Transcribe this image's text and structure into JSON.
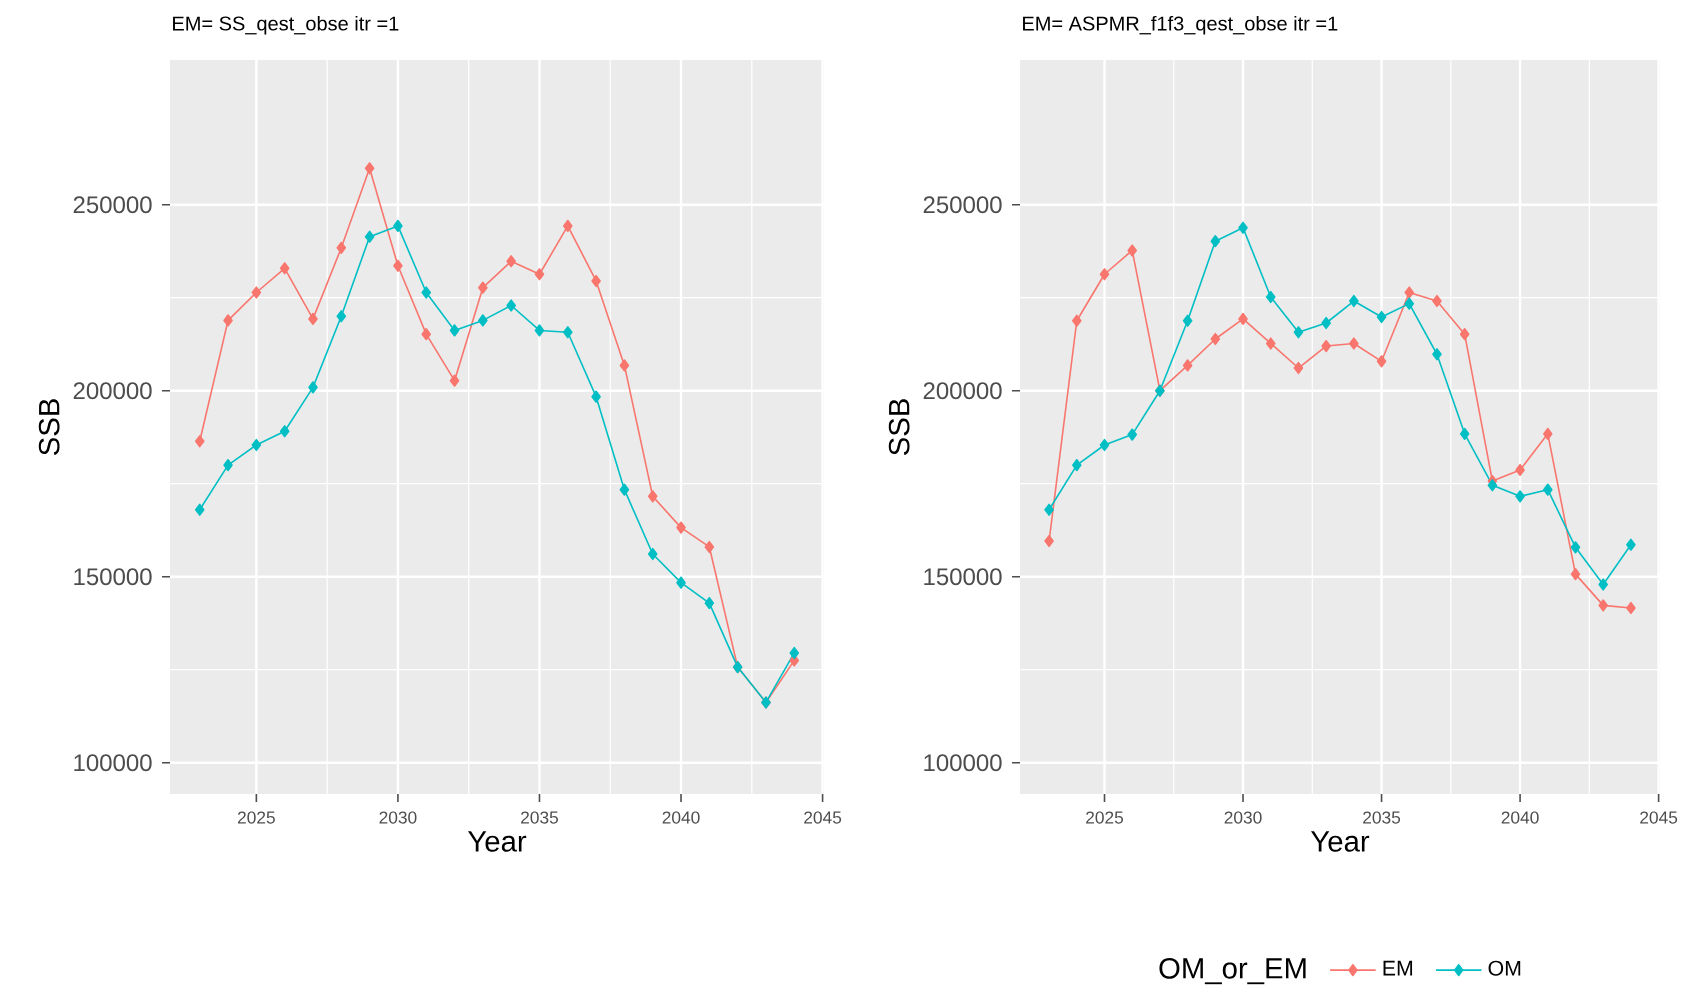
{
  "chart_data": [
    {
      "type": "line",
      "title": "EM= SS_qest_obse itr =1",
      "xlabel": "Year",
      "ylabel": "SSB",
      "x": [
        2023,
        2024,
        2025,
        2026,
        2027,
        2028,
        2029,
        2030,
        2031,
        2032,
        2033,
        2034,
        2035,
        2036,
        2037,
        2038,
        2039,
        2040,
        2041,
        2042,
        2043,
        2044
      ],
      "series": [
        {
          "color": "#f8766d",
          "values": [
            186400,
            218900,
            226400,
            232900,
            219300,
            238400,
            259800,
            233600,
            215200,
            202700,
            227700,
            234800,
            231300,
            244300,
            229500,
            206800,
            171600,
            163200,
            158000,
            125700,
            116200,
            127500
          ]
        },
        {
          "color": "#00bfc4",
          "values": [
            168000,
            180000,
            185400,
            189100,
            200900,
            220000,
            241400,
            244300,
            226400,
            216200,
            218900,
            222900,
            216200,
            215700,
            198400,
            173400,
            156100,
            148400,
            142900,
            125700,
            116200,
            129500
          ]
        }
      ],
      "xlim": [
        2021.95,
        2045.05
      ],
      "ylim": [
        91600,
        288900
      ],
      "xticks": [
        2025,
        2030,
        2035,
        2040,
        2045
      ],
      "yticks": [
        100000,
        150000,
        200000,
        250000
      ],
      "grid": true,
      "marker": "diamond"
    },
    {
      "type": "line",
      "title": "EM= ASPMR_f1f3_qest_obse itr =1",
      "xlabel": "Year",
      "ylabel": "SSB",
      "legend_title": "OM_or_EM",
      "x": [
        2023,
        2024,
        2025,
        2026,
        2027,
        2028,
        2029,
        2030,
        2031,
        2032,
        2033,
        2034,
        2035,
        2036,
        2037,
        2038,
        2039,
        2040,
        2041,
        2042,
        2043,
        2044
      ],
      "series": [
        {
          "name": "EM",
          "color": "#f8766d",
          "values": [
            159600,
            218800,
            231300,
            237700,
            200000,
            206800,
            213900,
            219300,
            212700,
            206100,
            212000,
            212700,
            207900,
            226400,
            224100,
            215200,
            175700,
            178700,
            188400,
            150700,
            142300,
            141600
          ]
        },
        {
          "name": "OM",
          "color": "#00bfc4",
          "values": [
            168000,
            180000,
            185400,
            188200,
            200000,
            218800,
            240200,
            243800,
            225200,
            215700,
            218200,
            224100,
            219800,
            223400,
            209800,
            188400,
            174600,
            171600,
            173400,
            157900,
            147900,
            158600
          ]
        }
      ],
      "xlim": [
        2021.95,
        2045.05
      ],
      "ylim": [
        91600,
        288900
      ],
      "xticks": [
        2025,
        2030,
        2035,
        2040,
        2045
      ],
      "yticks": [
        100000,
        150000,
        200000,
        250000
      ],
      "grid": true,
      "marker": "diamond",
      "legend": "bottom"
    }
  ]
}
